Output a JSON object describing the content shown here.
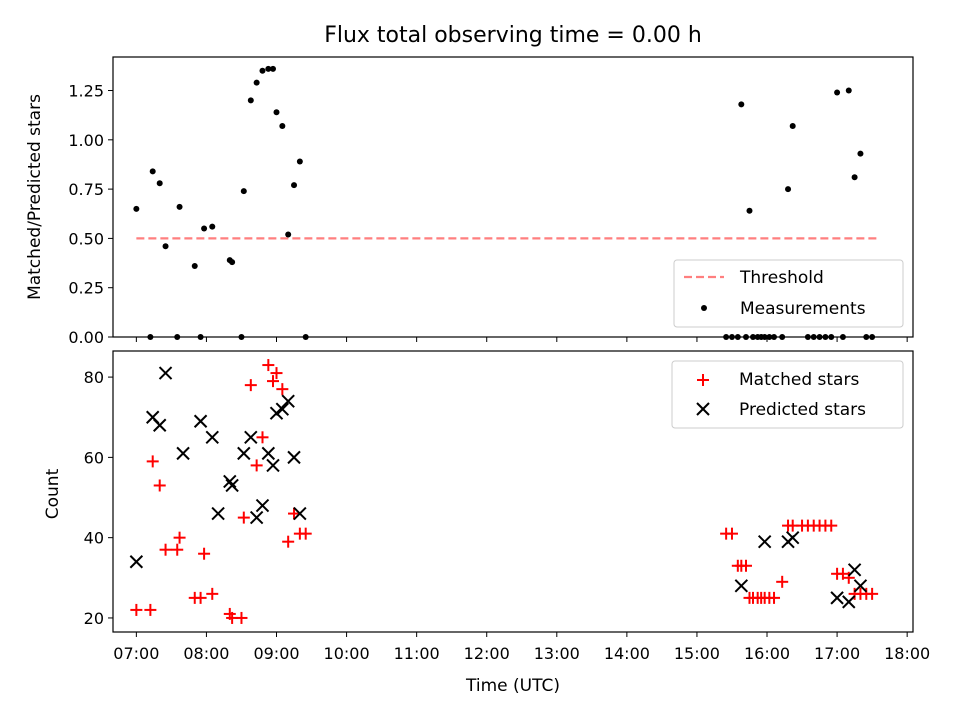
{
  "chart_data": [
    {
      "type": "scatter",
      "title": "Flux total observing time = 0.00 h",
      "ylabel": "Matched/Predicted stars",
      "xlabel": "",
      "xlim": [
        "06:40",
        "18:05"
      ],
      "ylim": [
        0,
        1.42
      ],
      "yticks": [
        "0.00",
        "0.25",
        "0.50",
        "0.75",
        "1.00",
        "1.25"
      ],
      "legend_position": "lower-right",
      "threshold": {
        "name": "Threshold",
        "x": [
          "07:00",
          "17:35"
        ],
        "y": 0.5,
        "color": "#ff7f7f"
      },
      "series": [
        {
          "name": "Measurements",
          "color": "#000000",
          "points": [
            [
              "07:00",
              0.65
            ],
            [
              "07:12",
              0.0
            ],
            [
              "07:14",
              0.84
            ],
            [
              "07:20",
              0.78
            ],
            [
              "07:25",
              0.46
            ],
            [
              "07:35",
              0.0
            ],
            [
              "07:37",
              0.66
            ],
            [
              "07:50",
              0.36
            ],
            [
              "07:55",
              0.0
            ],
            [
              "07:58",
              0.55
            ],
            [
              "08:05",
              0.56
            ],
            [
              "08:20",
              0.39
            ],
            [
              "08:22",
              0.38
            ],
            [
              "08:30",
              0.0
            ],
            [
              "08:32",
              0.74
            ],
            [
              "08:38",
              1.2
            ],
            [
              "08:43",
              1.29
            ],
            [
              "08:48",
              1.35
            ],
            [
              "08:53",
              1.36
            ],
            [
              "08:57",
              1.36
            ],
            [
              "09:00",
              1.14
            ],
            [
              "09:05",
              1.07
            ],
            [
              "09:10",
              0.52
            ],
            [
              "09:15",
              0.77
            ],
            [
              "09:20",
              0.89
            ],
            [
              "09:25",
              0.0
            ],
            [
              "15:25",
              0.0
            ],
            [
              "15:30",
              0.0
            ],
            [
              "15:35",
              0.0
            ],
            [
              "15:38",
              1.18
            ],
            [
              "15:42",
              0.0
            ],
            [
              "15:45",
              0.64
            ],
            [
              "15:48",
              0.0
            ],
            [
              "15:52",
              0.0
            ],
            [
              "15:55",
              0.0
            ],
            [
              "15:58",
              0.0
            ],
            [
              "16:02",
              0.0
            ],
            [
              "16:06",
              0.0
            ],
            [
              "16:13",
              0.0
            ],
            [
              "16:18",
              0.75
            ],
            [
              "16:22",
              1.07
            ],
            [
              "16:35",
              0.0
            ],
            [
              "16:40",
              0.0
            ],
            [
              "16:45",
              0.0
            ],
            [
              "16:50",
              0.0
            ],
            [
              "16:55",
              0.0
            ],
            [
              "17:00",
              1.24
            ],
            [
              "17:05",
              0.0
            ],
            [
              "17:10",
              1.25
            ],
            [
              "17:15",
              0.81
            ],
            [
              "17:20",
              0.93
            ],
            [
              "17:25",
              0.0
            ],
            [
              "17:30",
              0.0
            ]
          ]
        }
      ]
    },
    {
      "type": "scatter",
      "title": "",
      "ylabel": "Count",
      "xlabel": "Time (UTC)",
      "xlim": [
        "06:40",
        "18:05"
      ],
      "ylim": [
        16.5,
        86.5
      ],
      "yticks": [
        "20",
        "40",
        "60",
        "80"
      ],
      "xticks": [
        "07:00",
        "08:00",
        "09:00",
        "10:00",
        "11:00",
        "12:00",
        "13:00",
        "14:00",
        "15:00",
        "16:00",
        "17:00",
        "18:00"
      ],
      "legend_position": "upper-right",
      "series": [
        {
          "name": "Matched stars",
          "marker": "+",
          "color": "#ff0000",
          "points": [
            [
              "07:00",
              22
            ],
            [
              "07:12",
              22
            ],
            [
              "07:14",
              59
            ],
            [
              "07:20",
              53
            ],
            [
              "07:25",
              37
            ],
            [
              "07:35",
              37
            ],
            [
              "07:37",
              40
            ],
            [
              "07:50",
              25
            ],
            [
              "07:55",
              25
            ],
            [
              "07:58",
              36
            ],
            [
              "08:05",
              26
            ],
            [
              "08:20",
              21
            ],
            [
              "08:22",
              20
            ],
            [
              "08:30",
              20
            ],
            [
              "08:32",
              45
            ],
            [
              "08:38",
              78
            ],
            [
              "08:43",
              58
            ],
            [
              "08:48",
              65
            ],
            [
              "08:53",
              83
            ],
            [
              "08:57",
              79
            ],
            [
              "09:00",
              81
            ],
            [
              "09:05",
              77
            ],
            [
              "09:10",
              39
            ],
            [
              "09:15",
              46
            ],
            [
              "09:20",
              41
            ],
            [
              "09:25",
              41
            ],
            [
              "15:25",
              41
            ],
            [
              "15:30",
              41
            ],
            [
              "15:35",
              33
            ],
            [
              "15:38",
              33
            ],
            [
              "15:42",
              33
            ],
            [
              "15:45",
              25
            ],
            [
              "15:48",
              25
            ],
            [
              "15:52",
              25
            ],
            [
              "15:55",
              25
            ],
            [
              "15:58",
              25
            ],
            [
              "16:02",
              25
            ],
            [
              "16:06",
              25
            ],
            [
              "16:13",
              29
            ],
            [
              "16:18",
              43
            ],
            [
              "16:22",
              43
            ],
            [
              "16:30",
              43
            ],
            [
              "16:35",
              43
            ],
            [
              "16:40",
              43
            ],
            [
              "16:45",
              43
            ],
            [
              "16:50",
              43
            ],
            [
              "16:55",
              43
            ],
            [
              "17:00",
              31
            ],
            [
              "17:05",
              31
            ],
            [
              "17:10",
              30
            ],
            [
              "17:15",
              26
            ],
            [
              "17:20",
              26
            ],
            [
              "17:25",
              26
            ],
            [
              "17:30",
              26
            ]
          ]
        },
        {
          "name": "Predicted stars",
          "marker": "x",
          "color": "#000000",
          "points": [
            [
              "07:00",
              34
            ],
            [
              "07:14",
              70
            ],
            [
              "07:20",
              68
            ],
            [
              "07:25",
              81
            ],
            [
              "07:40",
              61
            ],
            [
              "07:55",
              69
            ],
            [
              "08:05",
              65
            ],
            [
              "08:10",
              46
            ],
            [
              "08:20",
              54
            ],
            [
              "08:22",
              53
            ],
            [
              "08:32",
              61
            ],
            [
              "08:38",
              65
            ],
            [
              "08:43",
              45
            ],
            [
              "08:48",
              48
            ],
            [
              "08:53",
              61
            ],
            [
              "08:57",
              58
            ],
            [
              "09:00",
              71
            ],
            [
              "09:05",
              72
            ],
            [
              "09:10",
              74
            ],
            [
              "09:15",
              60
            ],
            [
              "09:20",
              46
            ],
            [
              "15:38",
              28
            ],
            [
              "15:58",
              39
            ],
            [
              "16:18",
              39
            ],
            [
              "16:22",
              40
            ],
            [
              "17:00",
              25
            ],
            [
              "17:10",
              24
            ],
            [
              "17:15",
              32
            ],
            [
              "17:20",
              28
            ]
          ]
        }
      ]
    }
  ]
}
